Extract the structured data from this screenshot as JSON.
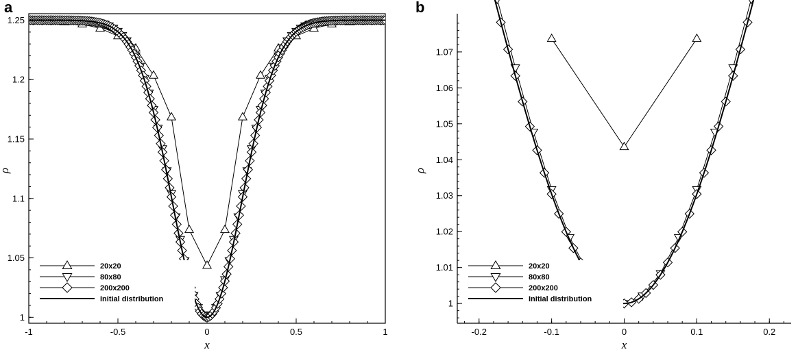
{
  "chart_data": [
    {
      "type": "line",
      "panel_label": "a",
      "xlabel": "x",
      "ylabel": "ρ",
      "xlim": [
        -1,
        1
      ],
      "ylim": [
        0.995,
        1.252
      ],
      "xticks": [
        -1,
        -0.5,
        0,
        0.5,
        1
      ],
      "xtick_labels": [
        "-1",
        "-0.5",
        "0",
        "0.5",
        "1"
      ],
      "yticks": [
        1,
        1.05,
        1.1,
        1.15,
        1.2,
        1.25
      ],
      "ytick_labels": [
        "1",
        "1.05",
        "1.1",
        "1.15",
        "1.2",
        "1.25"
      ],
      "legend_position": "bottom-left",
      "series": [
        {
          "name": "20x20",
          "marker": "triangle-up",
          "x": [
            -1,
            -0.9,
            -0.8,
            -0.7,
            -0.6,
            -0.5,
            -0.4,
            -0.3,
            -0.2,
            -0.1,
            0,
            0.1,
            0.2,
            0.3,
            0.4,
            0.5,
            0.6,
            0.7,
            0.8,
            0.9,
            1
          ],
          "y": [
            1.25,
            1.2497,
            1.2486,
            1.2467,
            1.2431,
            1.2367,
            1.2264,
            1.2036,
            1.1685,
            1.0737,
            1.0436,
            1.0737,
            1.1685,
            1.2036,
            1.2264,
            1.2367,
            1.2431,
            1.2467,
            1.2486,
            1.2497,
            1.25
          ]
        },
        {
          "name": "80x80",
          "marker": "triangle-down",
          "x": [],
          "y": []
        },
        {
          "name": "200x200",
          "marker": "diamond",
          "x": [],
          "y": []
        },
        {
          "name": "Initial distribution",
          "marker": "none",
          "x": [],
          "y": []
        }
      ]
    },
    {
      "type": "line",
      "panel_label": "b",
      "xlabel": "x",
      "ylabel": "ρ",
      "xlim": [
        -0.23,
        0.23
      ],
      "ylim": [
        0.9945,
        1.0795
      ],
      "xticks": [
        -0.2,
        -0.1,
        0,
        0.1,
        0.2
      ],
      "xtick_labels": [
        "-0.2",
        "-0.1",
        "0",
        "0.1",
        "0.2"
      ],
      "yticks": [
        1,
        1.01,
        1.02,
        1.03,
        1.04,
        1.05,
        1.06,
        1.07
      ],
      "ytick_labels": [
        "1",
        "1.01",
        "1.02",
        "1.03",
        "1.04",
        "1.05",
        "1.06",
        "1.07"
      ],
      "legend_position": "bottom-left",
      "series": [
        {
          "name": "20x20",
          "marker": "triangle-up",
          "x": [
            -0.1,
            0,
            0.1
          ],
          "y": [
            1.0737,
            1.0436,
            1.0737
          ]
        },
        {
          "name": "80x80",
          "marker": "triangle-down",
          "x": [],
          "y": []
        },
        {
          "name": "200x200",
          "marker": "diamond",
          "x": [],
          "y": []
        },
        {
          "name": "Initial distribution",
          "marker": "none",
          "x": [],
          "y": []
        }
      ]
    }
  ]
}
